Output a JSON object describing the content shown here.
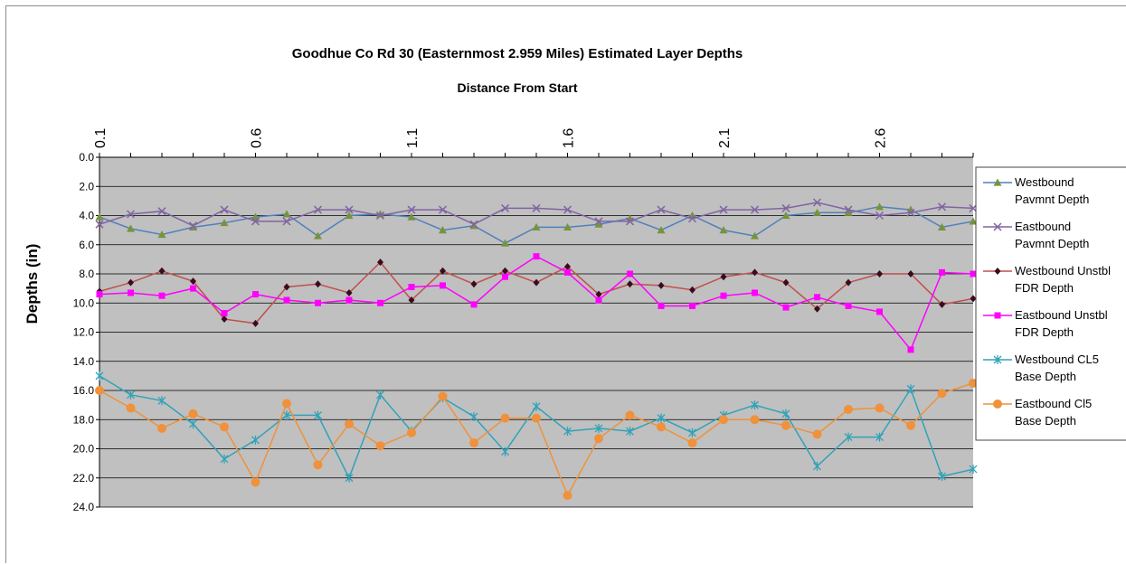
{
  "chart_data": {
    "type": "line",
    "title": "Goodhue Co Rd 30 (Easternmost 2.959 Miles) Estimated Layer Depths",
    "xlabel": "Distance From Start",
    "ylabel": "Depths (in)",
    "x_position": "top",
    "y_reversed": true,
    "ylim": [
      0,
      24
    ],
    "yticks": [
      "0.0",
      "2.0",
      "4.0",
      "6.0",
      "8.0",
      "10.0",
      "12.0",
      "14.0",
      "16.0",
      "18.0",
      "20.0",
      "22.0",
      "24.0"
    ],
    "x": [
      0.1,
      0.2,
      0.3,
      0.4,
      0.5,
      0.6,
      0.7,
      0.8,
      0.9,
      1.0,
      1.1,
      1.2,
      1.3,
      1.4,
      1.5,
      1.6,
      1.7,
      1.8,
      1.9,
      2.0,
      2.1,
      2.2,
      2.3,
      2.4,
      2.5,
      2.6,
      2.7,
      2.8,
      2.9
    ],
    "xticks": [
      "0.1",
      "0.6",
      "1.1",
      "1.6",
      "2.1",
      "2.6"
    ],
    "grid": "horizontal",
    "plot_background": "#c0c0c0",
    "legend_position": "right",
    "series": [
      {
        "name": "Westbound Pavmnt Depth",
        "color": "#4f81bd",
        "marker_color": "#77933c",
        "marker": "triangle",
        "values": [
          4.1,
          4.9,
          5.3,
          4.8,
          4.5,
          4.1,
          3.9,
          5.4,
          4.0,
          3.9,
          4.1,
          5.0,
          4.7,
          5.9,
          4.8,
          4.8,
          4.6,
          4.2,
          5.0,
          4.0,
          5.0,
          5.4,
          4.0,
          3.8,
          3.8,
          3.4,
          3.6,
          4.8,
          4.4
        ]
      },
      {
        "name": "Eastbound Pavmnt Depth",
        "color": "#8064a2",
        "marker": "x",
        "values": [
          4.6,
          3.9,
          3.7,
          4.7,
          3.6,
          4.4,
          4.4,
          3.6,
          3.6,
          4.0,
          3.6,
          3.6,
          4.6,
          3.5,
          3.5,
          3.6,
          4.4,
          4.4,
          3.6,
          4.2,
          3.6,
          3.6,
          3.5,
          3.1,
          3.6,
          4.0,
          3.8,
          3.4,
          3.5
        ]
      },
      {
        "name": "Westbound Unstbl FDR Depth",
        "color": "#c0504d",
        "marker_color": "#3c0a1e",
        "marker": "diamond",
        "values": [
          9.2,
          8.6,
          7.8,
          8.5,
          11.1,
          11.4,
          8.9,
          8.7,
          9.3,
          7.2,
          9.8,
          7.8,
          8.7,
          7.8,
          8.6,
          7.5,
          9.4,
          8.7,
          8.8,
          9.1,
          8.2,
          7.9,
          8.6,
          10.4,
          8.6,
          8.0,
          8.0,
          10.1,
          9.7
        ]
      },
      {
        "name": "Eastbound Unstbl FDR Depth",
        "color": "#ff00ff",
        "marker": "square",
        "values": [
          9.4,
          9.3,
          9.5,
          9.0,
          10.7,
          9.4,
          9.8,
          10.0,
          9.8,
          10.0,
          8.9,
          8.8,
          10.1,
          8.2,
          6.8,
          7.9,
          9.8,
          8.0,
          10.2,
          10.2,
          9.5,
          9.3,
          10.3,
          9.6,
          10.2,
          10.6,
          13.2,
          7.9,
          8.0
        ]
      },
      {
        "name": "Westbound CL5 Base Depth",
        "color": "#31a2b8",
        "marker": "asterisk",
        "values": [
          15.0,
          16.3,
          16.7,
          18.3,
          20.7,
          19.4,
          17.7,
          17.7,
          22.0,
          16.3,
          18.8,
          16.5,
          17.8,
          20.2,
          17.1,
          18.8,
          18.6,
          18.8,
          17.9,
          18.9,
          17.7,
          17.0,
          17.6,
          21.2,
          19.2,
          19.2,
          15.9,
          21.9,
          21.4
        ]
      },
      {
        "name": "Eastbound Cl5 Base Depth",
        "color": "#f0913b",
        "marker": "circle",
        "values": [
          16.0,
          17.2,
          18.6,
          17.6,
          18.5,
          22.3,
          16.9,
          21.1,
          18.3,
          19.8,
          18.9,
          16.4,
          19.6,
          17.9,
          17.9,
          23.2,
          19.3,
          17.7,
          18.5,
          19.6,
          18.0,
          18.0,
          18.4,
          19.0,
          17.3,
          17.2,
          18.4,
          16.2,
          15.5
        ]
      }
    ],
    "legend": [
      [
        "Westbound",
        "Pavmnt Depth"
      ],
      [
        "Eastbound",
        "Pavmnt Depth"
      ],
      [
        "Westbound Unstbl",
        "FDR Depth"
      ],
      [
        "Eastbound Unstbl",
        "FDR Depth"
      ],
      [
        "Westbound CL5",
        "Base Depth"
      ],
      [
        "Eastbound Cl5",
        "Base Depth"
      ]
    ]
  }
}
